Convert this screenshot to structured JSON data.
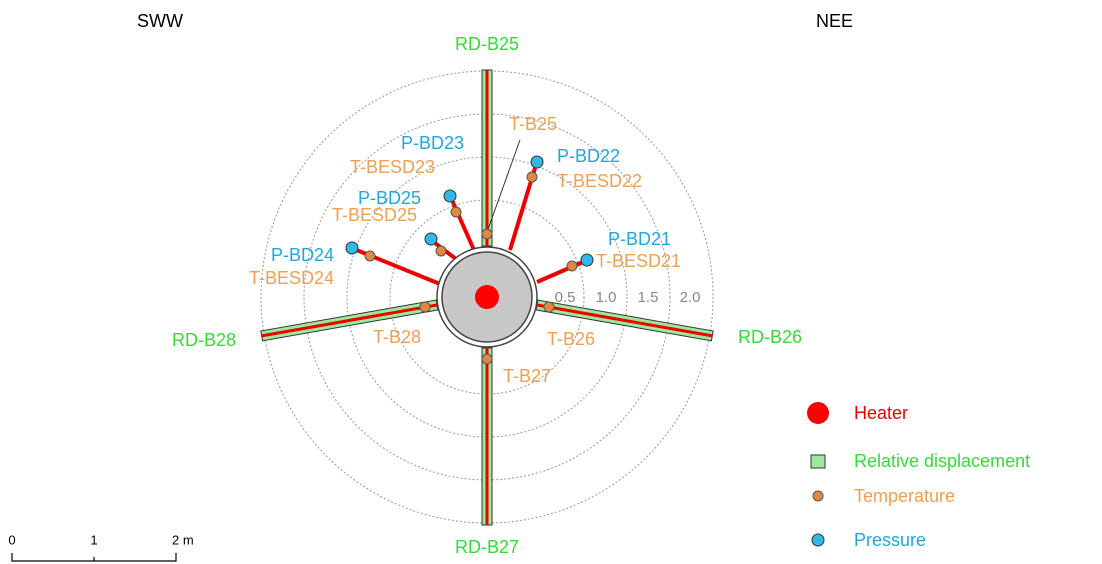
{
  "directions": {
    "left": "SWW",
    "right": "NEE"
  },
  "displacement": [
    "RD-B25",
    "RD-B26",
    "RD-B27",
    "RD-B28"
  ],
  "temperature": [
    "T-B25",
    "T-BESD22",
    "T-BESD21",
    "T-BESD23",
    "T-BESD25",
    "T-BESD24",
    "T-B28",
    "T-B26",
    "T-B27"
  ],
  "pressure": [
    "P-BD22",
    "P-BD21",
    "P-BD23",
    "P-BD25",
    "P-BD24"
  ],
  "radius_scale": [
    "0.5",
    "1.0",
    "1.5",
    "2.0"
  ],
  "legend": [
    "Heater",
    "Relative displacement",
    "Temperature",
    "Pressure"
  ],
  "scale_bar": [
    "0",
    "1",
    "2 m"
  ]
}
